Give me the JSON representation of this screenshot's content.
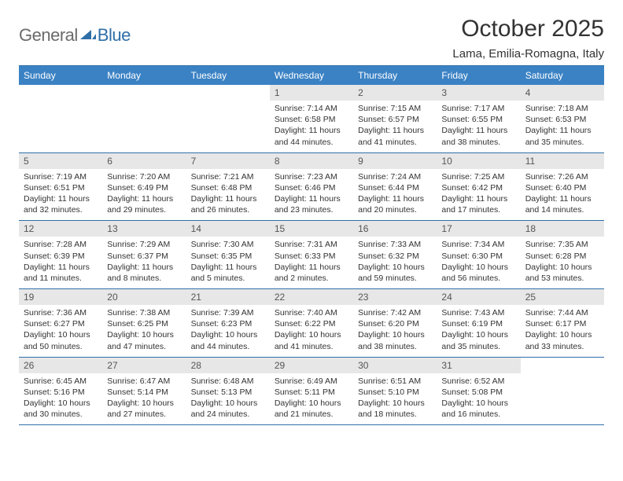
{
  "logo": {
    "general": "General",
    "blue": "Blue",
    "mark_color": "#2f6fa8"
  },
  "title": "October 2025",
  "location": "Lama, Emilia-Romagna, Italy",
  "header_bg": "#3b82c4",
  "header_fg": "#ffffff",
  "daynum_bg": "#e7e7e7",
  "border_color": "#2f6fa8",
  "weekdays": [
    "Sunday",
    "Monday",
    "Tuesday",
    "Wednesday",
    "Thursday",
    "Friday",
    "Saturday"
  ],
  "weeks": [
    [
      null,
      null,
      null,
      {
        "n": "1",
        "sr": "7:14 AM",
        "ss": "6:58 PM",
        "dl": "11 hours and 44 minutes."
      },
      {
        "n": "2",
        "sr": "7:15 AM",
        "ss": "6:57 PM",
        "dl": "11 hours and 41 minutes."
      },
      {
        "n": "3",
        "sr": "7:17 AM",
        "ss": "6:55 PM",
        "dl": "11 hours and 38 minutes."
      },
      {
        "n": "4",
        "sr": "7:18 AM",
        "ss": "6:53 PM",
        "dl": "11 hours and 35 minutes."
      }
    ],
    [
      {
        "n": "5",
        "sr": "7:19 AM",
        "ss": "6:51 PM",
        "dl": "11 hours and 32 minutes."
      },
      {
        "n": "6",
        "sr": "7:20 AM",
        "ss": "6:49 PM",
        "dl": "11 hours and 29 minutes."
      },
      {
        "n": "7",
        "sr": "7:21 AM",
        "ss": "6:48 PM",
        "dl": "11 hours and 26 minutes."
      },
      {
        "n": "8",
        "sr": "7:23 AM",
        "ss": "6:46 PM",
        "dl": "11 hours and 23 minutes."
      },
      {
        "n": "9",
        "sr": "7:24 AM",
        "ss": "6:44 PM",
        "dl": "11 hours and 20 minutes."
      },
      {
        "n": "10",
        "sr": "7:25 AM",
        "ss": "6:42 PM",
        "dl": "11 hours and 17 minutes."
      },
      {
        "n": "11",
        "sr": "7:26 AM",
        "ss": "6:40 PM",
        "dl": "11 hours and 14 minutes."
      }
    ],
    [
      {
        "n": "12",
        "sr": "7:28 AM",
        "ss": "6:39 PM",
        "dl": "11 hours and 11 minutes."
      },
      {
        "n": "13",
        "sr": "7:29 AM",
        "ss": "6:37 PM",
        "dl": "11 hours and 8 minutes."
      },
      {
        "n": "14",
        "sr": "7:30 AM",
        "ss": "6:35 PM",
        "dl": "11 hours and 5 minutes."
      },
      {
        "n": "15",
        "sr": "7:31 AM",
        "ss": "6:33 PM",
        "dl": "11 hours and 2 minutes."
      },
      {
        "n": "16",
        "sr": "7:33 AM",
        "ss": "6:32 PM",
        "dl": "10 hours and 59 minutes."
      },
      {
        "n": "17",
        "sr": "7:34 AM",
        "ss": "6:30 PM",
        "dl": "10 hours and 56 minutes."
      },
      {
        "n": "18",
        "sr": "7:35 AM",
        "ss": "6:28 PM",
        "dl": "10 hours and 53 minutes."
      }
    ],
    [
      {
        "n": "19",
        "sr": "7:36 AM",
        "ss": "6:27 PM",
        "dl": "10 hours and 50 minutes."
      },
      {
        "n": "20",
        "sr": "7:38 AM",
        "ss": "6:25 PM",
        "dl": "10 hours and 47 minutes."
      },
      {
        "n": "21",
        "sr": "7:39 AM",
        "ss": "6:23 PM",
        "dl": "10 hours and 44 minutes."
      },
      {
        "n": "22",
        "sr": "7:40 AM",
        "ss": "6:22 PM",
        "dl": "10 hours and 41 minutes."
      },
      {
        "n": "23",
        "sr": "7:42 AM",
        "ss": "6:20 PM",
        "dl": "10 hours and 38 minutes."
      },
      {
        "n": "24",
        "sr": "7:43 AM",
        "ss": "6:19 PM",
        "dl": "10 hours and 35 minutes."
      },
      {
        "n": "25",
        "sr": "7:44 AM",
        "ss": "6:17 PM",
        "dl": "10 hours and 33 minutes."
      }
    ],
    [
      {
        "n": "26",
        "sr": "6:45 AM",
        "ss": "5:16 PM",
        "dl": "10 hours and 30 minutes."
      },
      {
        "n": "27",
        "sr": "6:47 AM",
        "ss": "5:14 PM",
        "dl": "10 hours and 27 minutes."
      },
      {
        "n": "28",
        "sr": "6:48 AM",
        "ss": "5:13 PM",
        "dl": "10 hours and 24 minutes."
      },
      {
        "n": "29",
        "sr": "6:49 AM",
        "ss": "5:11 PM",
        "dl": "10 hours and 21 minutes."
      },
      {
        "n": "30",
        "sr": "6:51 AM",
        "ss": "5:10 PM",
        "dl": "10 hours and 18 minutes."
      },
      {
        "n": "31",
        "sr": "6:52 AM",
        "ss": "5:08 PM",
        "dl": "10 hours and 16 minutes."
      },
      null
    ]
  ],
  "labels": {
    "sunrise": "Sunrise:",
    "sunset": "Sunset:",
    "daylight": "Daylight:"
  }
}
